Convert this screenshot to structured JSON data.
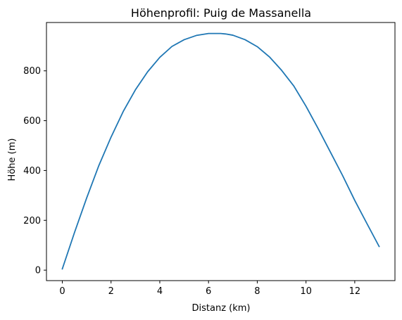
{
  "chart_data": {
    "type": "line",
    "title": "Höhenprofil: Puig de Massanella",
    "xlabel": "Distanz (km)",
    "ylabel": "Höhe (m)",
    "xlim": [
      -0.65,
      13.65
    ],
    "ylim": [
      -42,
      994
    ],
    "xticks": [
      0,
      2,
      4,
      6,
      8,
      10,
      12
    ],
    "yticks": [
      0,
      200,
      400,
      600,
      800
    ],
    "grid": false,
    "legend": "none",
    "series": [
      {
        "color": "#1f77b4",
        "x": [
          0,
          0.5,
          1,
          1.5,
          2,
          2.5,
          3,
          3.5,
          4,
          4.5,
          5,
          5.5,
          6,
          6.5,
          6.7,
          7,
          7.5,
          8,
          8.5,
          9,
          9.5,
          10,
          10.5,
          11,
          11.5,
          12,
          12.5,
          13
        ],
        "y": [
          5,
          151,
          290,
          420,
          534,
          637,
          724,
          796,
          854,
          898,
          925,
          942,
          950,
          950,
          948,
          943,
          925,
          897,
          856,
          802,
          739,
          658,
          568,
          474,
          380,
          280,
          187,
          95
        ]
      }
    ]
  }
}
